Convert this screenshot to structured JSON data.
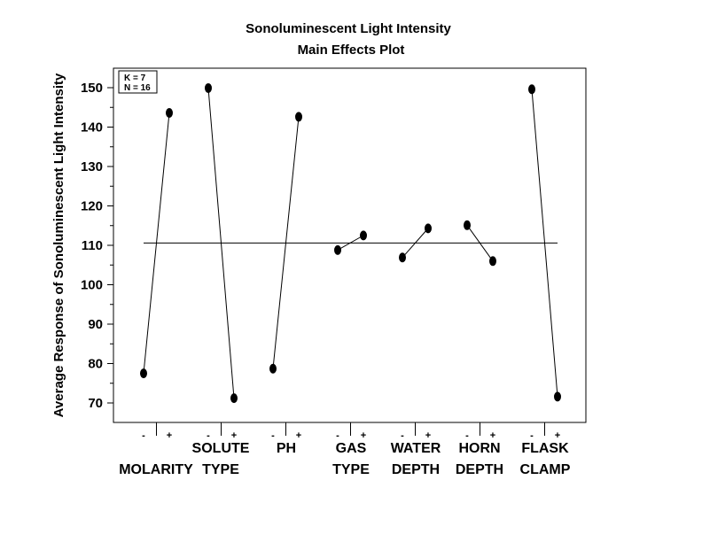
{
  "chart_data": {
    "type": "line",
    "title": "Sonoluminescent Light Intensity",
    "subtitle": "Main Effects Plot",
    "ylabel": "Average Response of Sonoluminescent Light Intensity",
    "ylim": [
      65,
      155
    ],
    "yticks": [
      70,
      80,
      90,
      100,
      110,
      120,
      130,
      140,
      150
    ],
    "grand_mean": 110.6,
    "legend": {
      "line1": "K = 7",
      "line2": "N = 16",
      "placement": "top-left"
    },
    "level_labels": [
      "-",
      "+"
    ],
    "factors": [
      {
        "label_top": "",
        "label_bottom": "MOLARITY",
        "values": [
          77.5,
          143.6
        ]
      },
      {
        "label_top": "SOLUTE",
        "label_bottom": "TYPE",
        "values": [
          149.9,
          71.2
        ]
      },
      {
        "label_top": "PH",
        "label_bottom": "",
        "values": [
          78.7,
          142.6
        ]
      },
      {
        "label_top": "GAS",
        "label_bottom": "TYPE",
        "values": [
          108.8,
          112.5
        ]
      },
      {
        "label_top": "WATER",
        "label_bottom": "DEPTH",
        "values": [
          106.9,
          114.3
        ]
      },
      {
        "label_top": "HORN",
        "label_bottom": "DEPTH",
        "values": [
          115.1,
          106.0
        ]
      },
      {
        "label_top": "FLASK",
        "label_bottom": "CLAMP",
        "values": [
          149.6,
          71.6
        ]
      }
    ]
  }
}
